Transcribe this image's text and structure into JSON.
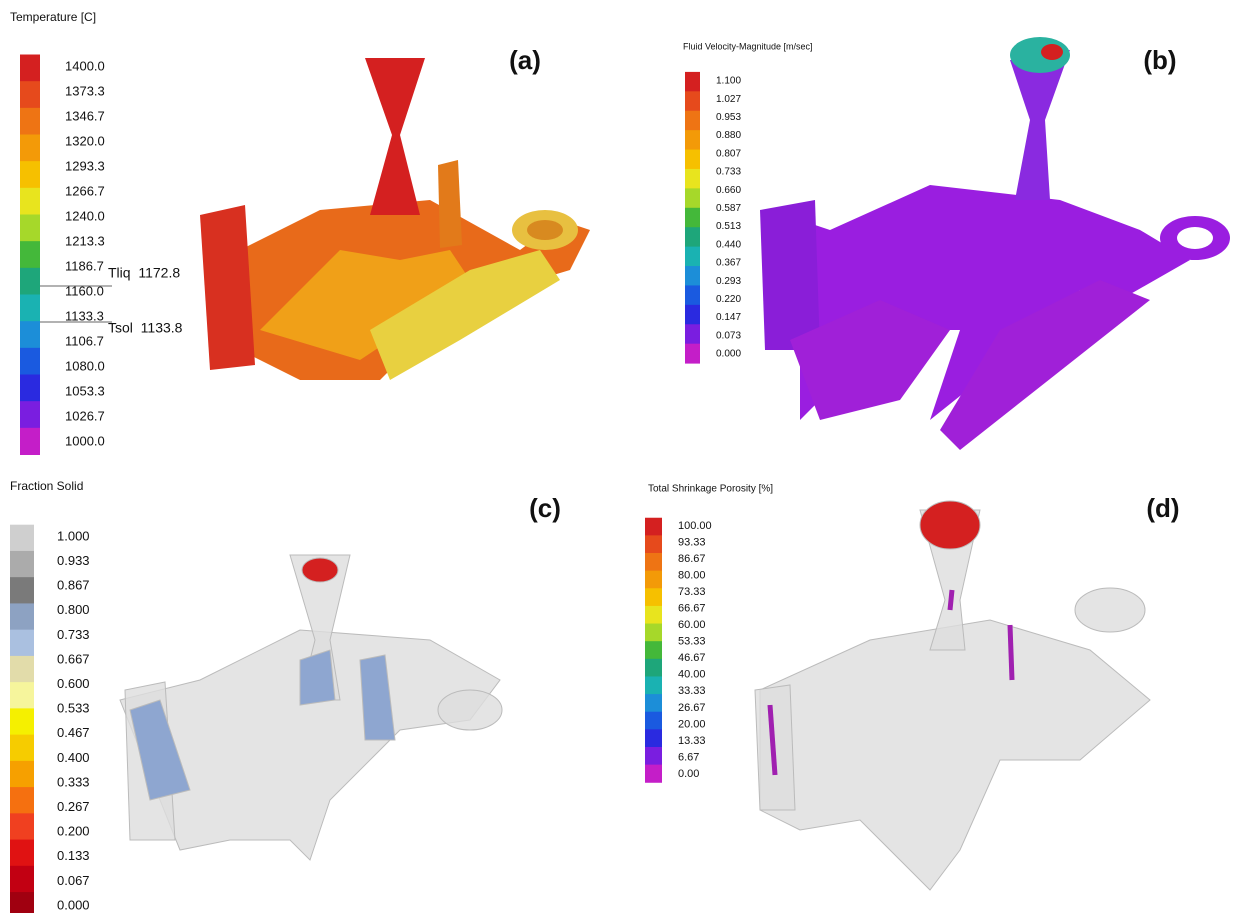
{
  "panels": [
    {
      "title": "Temperature [C]",
      "label": "(a)",
      "legend": {
        "labels": [
          "1400.0",
          "1373.3",
          "1346.7",
          "1320.0",
          "1293.3",
          "1266.7",
          "1240.0",
          "1213.3",
          "1186.7",
          "1160.0",
          "1133.3",
          "1106.7",
          "1080.0",
          "1053.3",
          "1026.7",
          "1000.0"
        ],
        "colors": [
          "#d42020",
          "#e64a1c",
          "#ee7414",
          "#f39a08",
          "#f6c000",
          "#e8e41e",
          "#a6d82a",
          "#44b83a",
          "#1ea67a",
          "#1ab2b2",
          "#1c8ed8",
          "#1a5ae0",
          "#2a2ae0",
          "#7a1ee0",
          "#c41ec8"
        ]
      },
      "annotations": [
        "Tliq  1172.8",
        "Tsol  1133.8"
      ]
    },
    {
      "title": "Fluid Velocity-Magnitude [m/sec]",
      "label": "(b)",
      "legend": {
        "labels": [
          "1.100",
          "1.027",
          "0.953",
          "0.880",
          "0.807",
          "0.733",
          "0.660",
          "0.587",
          "0.513",
          "0.440",
          "0.367",
          "0.293",
          "0.220",
          "0.147",
          "0.073",
          "0.000"
        ],
        "colors": [
          "#d42020",
          "#e64a1c",
          "#ee7414",
          "#f39a08",
          "#f6c000",
          "#e8e41e",
          "#a6d82a",
          "#44b83a",
          "#1ea67a",
          "#1ab2b2",
          "#1c8ed8",
          "#1a5ae0",
          "#2a2ae0",
          "#7a1ee0",
          "#c41ec8"
        ]
      }
    },
    {
      "title": "Fraction Solid",
      "label": "(c)",
      "legend": {
        "labels": [
          "1.000",
          "0.933",
          "0.867",
          "0.800",
          "0.733",
          "0.667",
          "0.600",
          "0.533",
          "0.467",
          "0.400",
          "0.333",
          "0.267",
          "0.200",
          "0.133",
          "0.067",
          "0.000"
        ],
        "colors": [
          "#cfcfcf",
          "#ababab",
          "#7a7a7a",
          "#8da2c2",
          "#aac0e0",
          "#e2dcaa",
          "#f6f59c",
          "#f5f000",
          "#f6cc00",
          "#f6a000",
          "#f57010",
          "#f04020",
          "#e01212",
          "#c20012",
          "#a00010"
        ]
      }
    },
    {
      "title": "Total Shrinkage Porosity [%]",
      "label": "(d)",
      "legend": {
        "labels": [
          "100.00",
          "93.33",
          "86.67",
          "80.00",
          "73.33",
          "66.67",
          "60.00",
          "53.33",
          "46.67",
          "40.00",
          "33.33",
          "26.67",
          "20.00",
          "13.33",
          "6.67",
          "0.00"
        ],
        "colors": [
          "#d42020",
          "#e64a1c",
          "#ee7414",
          "#f39a08",
          "#f6c000",
          "#e8e41e",
          "#a6d82a",
          "#44b83a",
          "#1ea67a",
          "#1ab2b2",
          "#1c8ed8",
          "#1a5ae0",
          "#2a2ae0",
          "#7a1ee0",
          "#c41ec8"
        ]
      }
    }
  ]
}
